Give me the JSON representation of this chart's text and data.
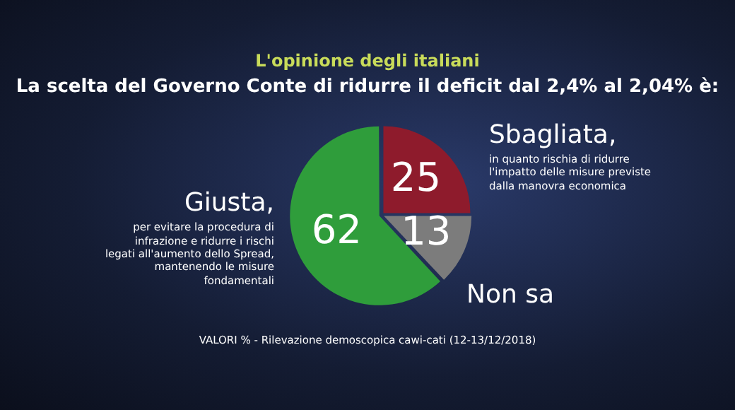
{
  "chart_data": {
    "type": "pie",
    "title": "L'opinione degli italiani",
    "subtitle": "La scelta del Governo Conte di ridurre il deficit dal 2,4% al 2,04% è:",
    "categories": [
      "Sbagliata",
      "Non sa",
      "Giusta"
    ],
    "values": [
      25,
      13,
      62
    ],
    "colors": [
      "#8e1b2c",
      "#7c7c7c",
      "#2f9d3b"
    ],
    "data_labels": true,
    "legend": false,
    "annotations": [
      ", in quanto rischia di ridurre l'impatto delle misure previste dalla manovra economica",
      ", per evitare la procedura di infrazione e ridurre i rischi legati all'aumento dello Spread, mantenendo le misure fondamentali",
      "VALORI % - Rilevazione demoscopica cawi-cati (12-13/12/2018)"
    ]
  }
}
